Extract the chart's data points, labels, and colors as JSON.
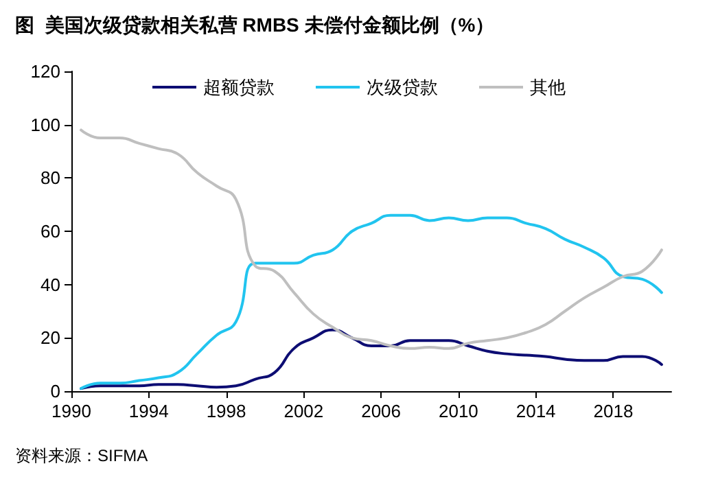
{
  "chart_data": {
    "type": "line",
    "title": "图  美国次级贷款相关私营 RMBS 未偿付金额比例（%）",
    "x": [
      1990.5,
      1991.5,
      1992.5,
      1993.5,
      1994.5,
      1995.5,
      1996.5,
      1997.5,
      1998.5,
      1999.5,
      2000.5,
      2001.5,
      2002.5,
      2003.5,
      2004.5,
      2005.5,
      2006.5,
      2007.5,
      2008.5,
      2009.5,
      2010.5,
      2011.5,
      2012.5,
      2013.5,
      2014.5,
      2015.5,
      2016.5,
      2017.5,
      2018.5,
      2019.5,
      2020.5
    ],
    "series": [
      {
        "name": "超额贷款",
        "color": "#0d0d73",
        "values": [
          1,
          2,
          2,
          2,
          2.5,
          2.5,
          2,
          1.5,
          2,
          4.5,
          7,
          16,
          20,
          23,
          20,
          17,
          17,
          19,
          19,
          19,
          17,
          15,
          14,
          13.5,
          13,
          12,
          11.5,
          11.5,
          13,
          13,
          10
        ]
      },
      {
        "name": "次级贷款",
        "color": "#21c4ef",
        "values": [
          1,
          3,
          3,
          4,
          5,
          7,
          14,
          21,
          26,
          48,
          48,
          48,
          51,
          53,
          60,
          63,
          66,
          66,
          64,
          65,
          64,
          65,
          65,
          63,
          61,
          57,
          54,
          50,
          43,
          42,
          37
        ]
      },
      {
        "name": "其他",
        "color": "#bfbfbf",
        "values": [
          98,
          95,
          95,
          93,
          91,
          89,
          82,
          77,
          72,
          47,
          45,
          37,
          29,
          24,
          20,
          19,
          17,
          16,
          16.5,
          16,
          18,
          19,
          20,
          22,
          25,
          30,
          35,
          39,
          43,
          45,
          53
        ]
      }
    ],
    "xlim": [
      1990,
      2021
    ],
    "xticks": [
      1990,
      1994,
      1998,
      2002,
      2006,
      2010,
      2014,
      2018
    ],
    "ylim": [
      0,
      120
    ],
    "yticks": [
      0,
      20,
      40,
      60,
      80,
      100,
      120
    ],
    "grid": false,
    "legend": "top",
    "marker": "none",
    "line_style": "solid",
    "annotations": [
      "资料来源：SIFMA"
    ]
  }
}
